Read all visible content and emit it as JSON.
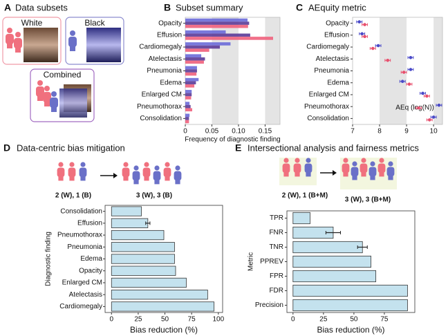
{
  "illustrations": {
    "A": {
      "letter": "A",
      "title": "Data subsets",
      "labels": [
        "White",
        "Black",
        "Combined"
      ]
    }
  },
  "chart_data": [
    {
      "type": "bar",
      "orientation": "horizontal",
      "letter": "B",
      "title": "Subset summary",
      "xlabel": "Frequency of diagnostic finding",
      "categories": [
        "Opacity",
        "Effusion",
        "Cardiomegaly",
        "Atelectasis",
        "Pneumonia",
        "Edema",
        "Enlarged CM",
        "Pneumothorax",
        "Consolidation"
      ],
      "series": [
        {
          "color": "#6a6ad8",
          "values": [
            0.117,
            0.076,
            0.085,
            0.03,
            0.022,
            0.025,
            0.012,
            0.008,
            0.008
          ]
        },
        {
          "color": "#5b3b98",
          "values": [
            0.12,
            0.122,
            0.065,
            0.037,
            0.022,
            0.02,
            0.012,
            0.01,
            0.007
          ]
        },
        {
          "color": "#f0607c",
          "values": [
            0.118,
            0.165,
            0.045,
            0.035,
            0.021,
            0.017,
            0.011,
            0.013,
            0.007
          ]
        }
      ],
      "xlim": [
        0,
        0.178
      ],
      "xticks": [
        0,
        0.05,
        {
          "value": 0.1,
          "label": "0.10"
        },
        0.15
      ],
      "alternating_bands": true
    },
    {
      "type": "dot",
      "letter": "C",
      "title": "AEquity metric",
      "xlabel": "AEq (log(N))",
      "categories": [
        "Opacity",
        "Effusion",
        "Cardiomegaly",
        "Atelectasis",
        "Pneumonia",
        "Edema",
        "Enlarged CM",
        "Pneumothorax",
        "Consolidation"
      ],
      "series": [
        {
          "color": "#4a4ac8",
          "values": [
            7.25,
            7.35,
            7.95,
            9.15,
            9.15,
            8.85,
            9.6,
            10.2,
            10.0
          ],
          "errors": [
            0.1,
            0.1,
            0.1,
            0.1,
            0.1,
            0.1,
            0.1,
            0.1,
            0.1
          ]
        },
        {
          "color": "#e8506e",
          "values": [
            7.45,
            7.45,
            7.75,
            8.3,
            8.9,
            9.1,
            9.75,
            9.45,
            9.85
          ],
          "errors": [
            0.1,
            0.1,
            0.1,
            0.1,
            0.1,
            0.1,
            0.1,
            0.1,
            0.1
          ]
        }
      ],
      "xlim": [
        7,
        10.33
      ],
      "xticks": [
        7,
        8,
        9,
        10
      ],
      "alternating_bands": true
    },
    {
      "type": "bar",
      "orientation": "horizontal",
      "letter": "D",
      "title": "Data-centric bias mitigation",
      "annotations": [
        "2 (W), 1 (B)",
        "3 (W), 3 (B)"
      ],
      "xlabel": "Bias reduction (%)",
      "ylabel": "Diagnostic finding",
      "categories": [
        "Consolidation",
        "Effusion",
        "Pneumothorax",
        "Pneumonia",
        "Edema",
        "Opacity",
        "Enlarged CM",
        "Atelectasis",
        "Cardiomegaly"
      ],
      "values": [
        28,
        34,
        49,
        59,
        59,
        60,
        70,
        90,
        96
      ],
      "errors": [
        null,
        2,
        null,
        null,
        null,
        null,
        null,
        null,
        null
      ],
      "color": "#c4e2ee",
      "xlim": [
        -6,
        104
      ],
      "xticks": [
        0,
        25,
        50,
        75,
        100
      ]
    },
    {
      "type": "bar",
      "orientation": "horizontal",
      "letter": "E",
      "title": "Intersectional analysis and fairness metrics",
      "annotations": [
        "2 (W), 1 (B+M)",
        "3 (W), 3 (B+M)"
      ],
      "xlabel": "Bias reduction (%)",
      "ylabel": "Metric",
      "categories": [
        "TPR",
        "FNR",
        "TNR",
        "PPREV",
        "FPR",
        "FDR",
        "Precision"
      ],
      "values": [
        14,
        33,
        57,
        64,
        68,
        94,
        94
      ],
      "errors": [
        null,
        6,
        4,
        null,
        null,
        null,
        null
      ],
      "color": "#c4e2ee",
      "xlim": [
        -5,
        100
      ],
      "xticks": [
        0,
        25,
        50,
        75
      ]
    }
  ]
}
